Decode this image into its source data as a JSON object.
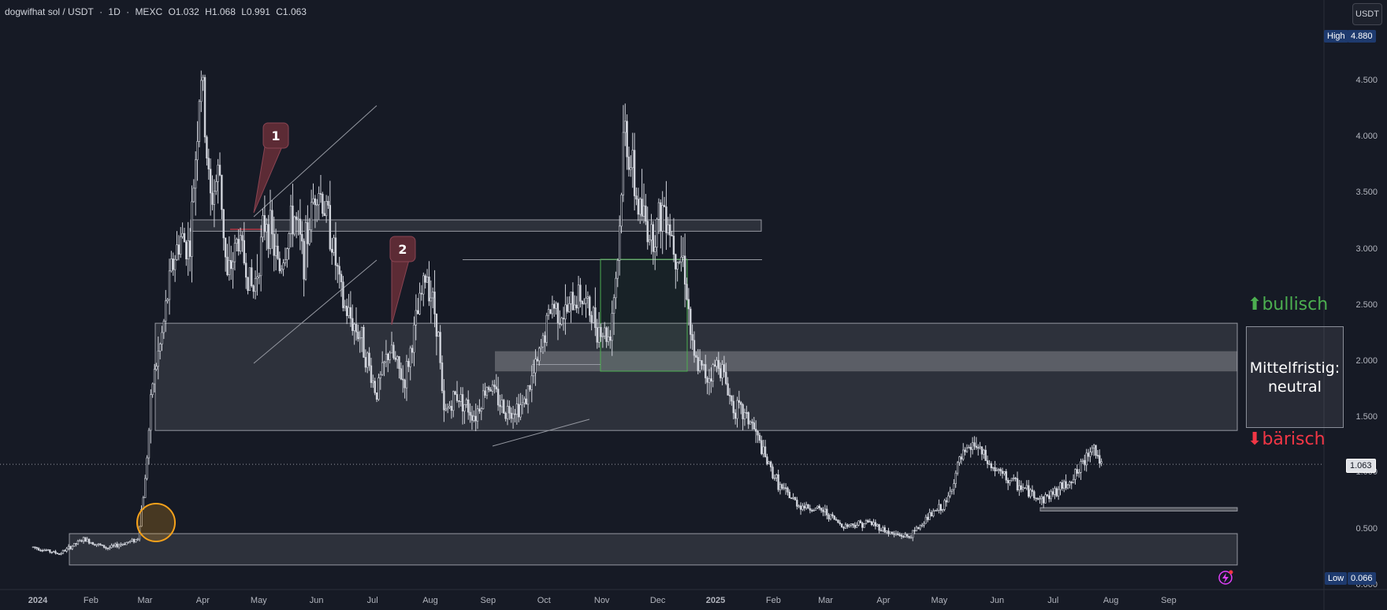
{
  "header": {
    "symbol": "dogwifhat sol / USDT",
    "interval": "1D",
    "exchange": "MEXC",
    "open": "O1.032",
    "high": "H1.068",
    "low": "L0.991",
    "close": "C1.063",
    "separator": "·"
  },
  "currency_button": "USDT",
  "price_tags": {
    "high_label": "High",
    "high_value": "4.880",
    "low_label": "Low",
    "low_value": "0.066",
    "last_value": "1.063"
  },
  "annotations": {
    "bullish": "bullisch",
    "bearish": "bärisch",
    "neutral_line1": "Mittelfristig:",
    "neutral_line2": "neutral",
    "callout_1": "1",
    "callout_2": "2"
  },
  "colors": {
    "background": "#161a25",
    "candles": "#d1d4dc",
    "bullish": "#4caf50",
    "bearish": "#f23645",
    "orange_marker": "#f7a21b",
    "green_box": "#4caf50",
    "callout": "#5c2b35"
  },
  "chart_data": {
    "type": "candlestick",
    "y_scale": "log",
    "y_ticks": [
      "4.500",
      "4.000",
      "3.500",
      "3.000",
      "2.500",
      "2.000",
      "1.500",
      "1.000",
      "0.500",
      "0.000"
    ],
    "x_ticks": [
      "2024",
      "Feb",
      "Mar",
      "Apr",
      "May",
      "Jun",
      "Jul",
      "Aug",
      "Sep",
      "Oct",
      "Nov",
      "Dec",
      "2025",
      "Feb",
      "Mar",
      "Apr",
      "May",
      "Jun",
      "Jul",
      "Aug",
      "Sep"
    ],
    "price_path": [
      [
        "2024-01-01",
        0.33
      ],
      [
        "2024-01-15",
        0.27
      ],
      [
        "2024-01-28",
        0.4
      ],
      [
        "2024-02-10",
        0.32
      ],
      [
        "2024-02-20",
        0.37
      ],
      [
        "2024-02-26",
        0.4
      ],
      [
        "2024-03-01",
        0.9
      ],
      [
        "2024-03-05",
        1.8
      ],
      [
        "2024-03-10",
        2.2
      ],
      [
        "2024-03-15",
        2.8
      ],
      [
        "2024-03-20",
        3.1
      ],
      [
        "2024-03-25",
        3.0
      ],
      [
        "2024-03-31",
        4.6
      ],
      [
        "2024-04-05",
        3.4
      ],
      [
        "2024-04-10",
        3.7
      ],
      [
        "2024-04-14",
        2.7
      ],
      [
        "2024-04-20",
        3.1
      ],
      [
        "2024-04-28",
        2.6
      ],
      [
        "2024-05-05",
        3.3
      ],
      [
        "2024-05-12",
        2.8
      ],
      [
        "2024-05-20",
        3.3
      ],
      [
        "2024-05-25",
        2.9
      ],
      [
        "2024-06-01",
        3.6
      ],
      [
        "2024-06-08",
        3.2
      ],
      [
        "2024-06-15",
        2.5
      ],
      [
        "2024-06-25",
        2.2
      ],
      [
        "2024-07-03",
        1.7
      ],
      [
        "2024-07-10",
        2.1
      ],
      [
        "2024-07-18",
        1.8
      ],
      [
        "2024-07-24",
        2.3
      ],
      [
        "2024-07-30",
        2.8
      ],
      [
        "2024-08-05",
        2.3
      ],
      [
        "2024-08-08",
        1.5
      ],
      [
        "2024-08-15",
        1.7
      ],
      [
        "2024-08-25",
        1.5
      ],
      [
        "2024-09-01",
        1.8
      ],
      [
        "2024-09-10",
        1.55
      ],
      [
        "2024-09-20",
        1.6
      ],
      [
        "2024-09-28",
        2.0
      ],
      [
        "2024-10-05",
        2.5
      ],
      [
        "2024-10-12",
        2.4
      ],
      [
        "2024-10-20",
        2.6
      ],
      [
        "2024-10-30",
        2.3
      ],
      [
        "2024-11-05",
        2.2
      ],
      [
        "2024-11-10",
        3.0
      ],
      [
        "2024-11-13",
        4.1
      ],
      [
        "2024-11-20",
        3.4
      ],
      [
        "2024-11-28",
        3.1
      ],
      [
        "2024-12-05",
        3.4
      ],
      [
        "2024-12-10",
        3.0
      ],
      [
        "2024-12-15",
        2.9
      ],
      [
        "2024-12-20",
        2.0
      ],
      [
        "2024-12-28",
        1.85
      ],
      [
        "2025-01-03",
        2.0
      ],
      [
        "2025-01-10",
        1.6
      ],
      [
        "2025-01-20",
        1.45
      ],
      [
        "2025-01-28",
        1.1
      ],
      [
        "2025-02-05",
        0.85
      ],
      [
        "2025-02-15",
        0.7
      ],
      [
        "2025-02-28",
        0.65
      ],
      [
        "2025-03-10",
        0.52
      ],
      [
        "2025-03-25",
        0.55
      ],
      [
        "2025-04-05",
        0.45
      ],
      [
        "2025-04-15",
        0.42
      ],
      [
        "2025-04-25",
        0.6
      ],
      [
        "2025-05-05",
        0.72
      ],
      [
        "2025-05-12",
        1.1
      ],
      [
        "2025-05-20",
        1.25
      ],
      [
        "2025-05-28",
        1.05
      ],
      [
        "2025-06-05",
        0.95
      ],
      [
        "2025-06-15",
        0.85
      ],
      [
        "2025-06-25",
        0.75
      ],
      [
        "2025-07-05",
        0.85
      ],
      [
        "2025-07-15",
        1.0
      ],
      [
        "2025-07-22",
        1.25
      ],
      [
        "2025-07-27",
        1.06
      ]
    ],
    "high": 4.88,
    "low": 0.066,
    "last": 1.063,
    "zones": [
      {
        "from": 1.37,
        "to": 2.33,
        "shade": "light"
      },
      {
        "from": 1.9,
        "to": 2.08,
        "shade": "strong"
      },
      {
        "from": 3.15,
        "to": 3.25,
        "shade": "light"
      },
      {
        "from": 0.17,
        "to": 0.45,
        "shade": "light"
      },
      {
        "from": 0.65,
        "to": 0.68,
        "shade": "line"
      }
    ]
  }
}
